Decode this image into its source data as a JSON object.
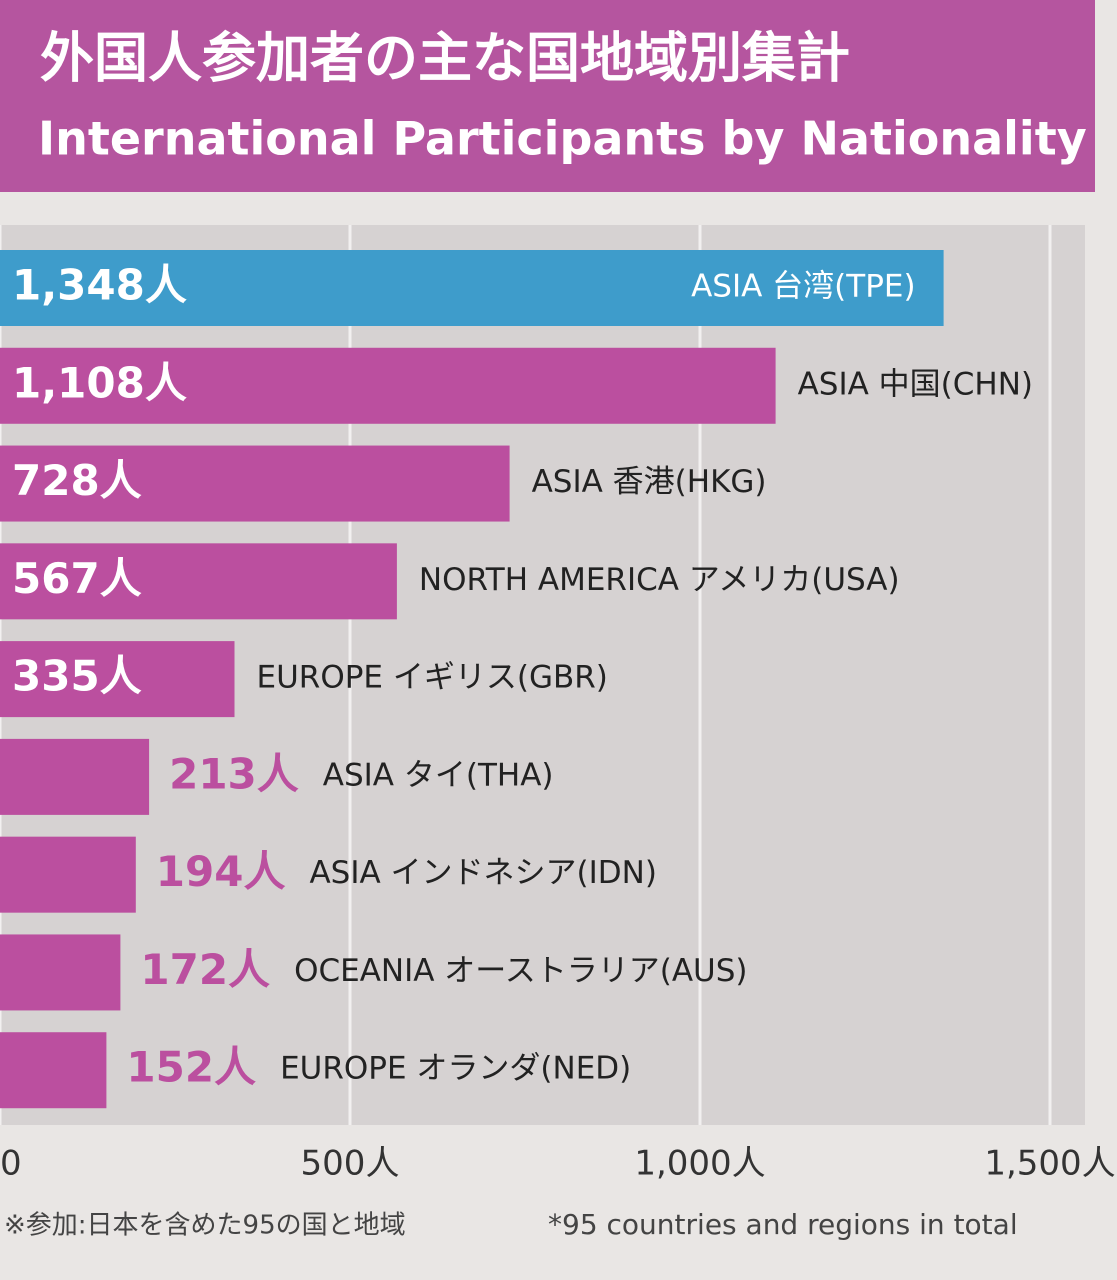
{
  "chart_data": {
    "type": "hbar",
    "title": "外国人参加者の主な国地域別集計",
    "subtitle": "International Participants by Nationality",
    "categories": [
      "ASIA 台湾(TPE)",
      "ASIA 中国(CHN)",
      "ASIA 香港(HKG)",
      "NORTH AMERICA アメリカ(USA)",
      "EUROPE イギリス(GBR)",
      "ASIA タイ(THA)",
      "ASIA インドネシア(IDN)",
      "OCEANIA オーストラリア(AUS)",
      "EUROPE オランダ(NED)"
    ],
    "values": [
      1348,
      1108,
      728,
      567,
      335,
      213,
      194,
      172,
      152
    ],
    "value_labels": [
      "1,348人",
      "1,108人",
      "728人",
      "567人",
      "335人",
      "213人",
      "194人",
      "172人",
      "152人"
    ],
    "colors": [
      "#3e9ccb",
      "#bb4f9f",
      "#bb4f9f",
      "#bb4f9f",
      "#bb4f9f",
      "#bb4f9f",
      "#bb4f9f",
      "#bb4f9f",
      "#bb4f9f"
    ],
    "xlim": [
      0,
      1550
    ],
    "xticks": [
      0,
      {
        "value": 500,
        "label": "500人"
      },
      {
        "value": 1000,
        "label": "1,000人"
      },
      {
        "value": 1500,
        "label": "1,500人"
      }
    ],
    "grid": true,
    "footnotes": [
      "※参加:日本を含めた95の国と地域",
      "*95 countries and regions in total"
    ]
  }
}
